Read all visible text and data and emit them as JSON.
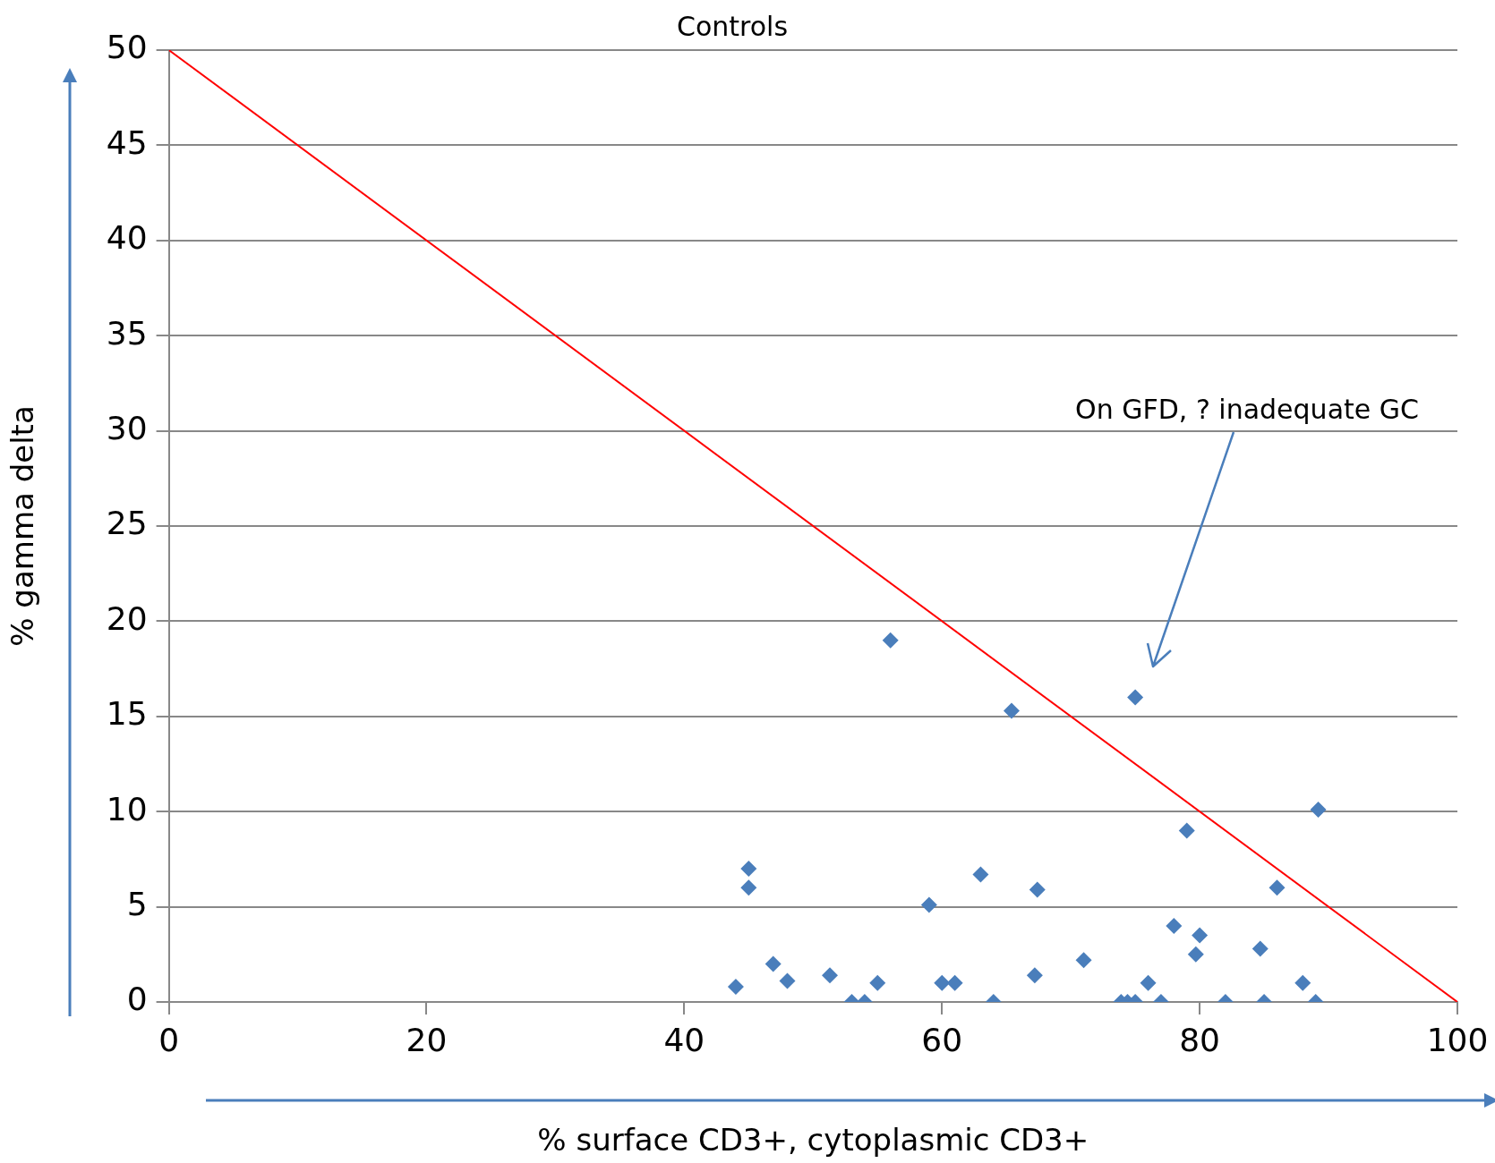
{
  "chart_data": {
    "type": "scatter",
    "title": "Controls",
    "xlabel": "% surface CD3+, cytoplasmic CD3+",
    "ylabel": "% gamma delta",
    "xlim": [
      0,
      100
    ],
    "xticks": [
      0,
      20,
      40,
      60,
      80,
      100
    ],
    "ylim": [
      0,
      50
    ],
    "yticks": [
      0,
      5,
      10,
      15,
      20,
      25,
      30,
      35,
      40,
      45,
      50
    ],
    "grid": "y",
    "legend": false,
    "marker": "diamond",
    "series": [
      {
        "color": "#4a7ebb",
        "x": [
          44,
          45,
          45,
          46.9,
          48,
          51.3,
          53,
          54,
          55,
          56,
          59,
          60,
          61,
          63,
          64,
          65.4,
          67.2,
          67.4,
          71,
          73.9,
          74.4,
          75,
          75,
          76,
          77,
          78,
          79,
          79.7,
          80,
          82,
          84.7,
          85,
          86,
          88,
          89,
          89.2
        ],
        "values": [
          0.8,
          7,
          6,
          2,
          1.1,
          1.4,
          0,
          0,
          1,
          19,
          5.1,
          1,
          1,
          6.7,
          0,
          15.3,
          1.4,
          5.9,
          2.2,
          0,
          0,
          16,
          0,
          1,
          0,
          4,
          9,
          2.5,
          3.5,
          0,
          2.8,
          0,
          6,
          1,
          0,
          10.1
        ]
      },
      {
        "type": "line",
        "color": "#ff0000",
        "marker": "none",
        "x": [
          0,
          100
        ],
        "values": [
          50,
          0
        ]
      }
    ],
    "annotations": [
      "On GFD, ? inadequate GC"
    ]
  }
}
